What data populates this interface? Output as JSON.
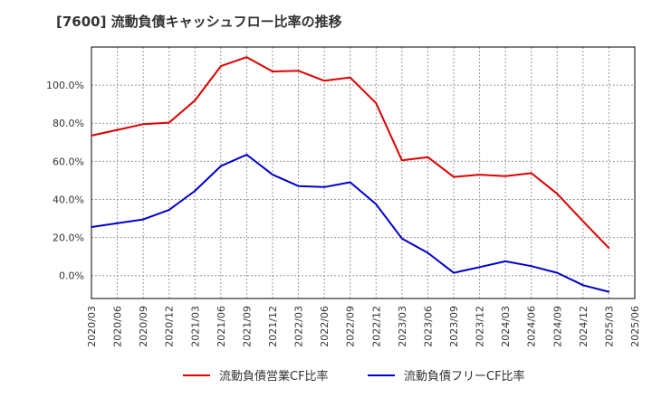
{
  "title": "[7600]  流動負債キャッシュフロー比率の推移",
  "chart_data": {
    "type": "line",
    "title": "[7600]  流動負債キャッシュフロー比率の推移",
    "xlabel": "",
    "ylabel": "",
    "categories": [
      "2020/03",
      "2020/06",
      "2020/09",
      "2020/12",
      "2021/03",
      "2021/06",
      "2021/09",
      "2021/12",
      "2022/03",
      "2022/06",
      "2022/09",
      "2022/12",
      "2023/03",
      "2023/06",
      "2023/09",
      "2023/12",
      "2024/03",
      "2024/06",
      "2024/09",
      "2024/12",
      "2025/03",
      "2025/06"
    ],
    "ylim": [
      -12,
      120
    ],
    "yticks": [
      0,
      20,
      40,
      60,
      80,
      100
    ],
    "ytick_labels": [
      "0.0%",
      "20.0%",
      "40.0%",
      "60.0%",
      "80.0%",
      "100.0%"
    ],
    "grid": true,
    "legend_position": "bottom",
    "series": [
      {
        "name": "流動負債営業CF比率",
        "color": "#dd0000",
        "points": [
          [
            "2020/03",
            73.5
          ],
          [
            "2020/06",
            76.5
          ],
          [
            "2020/09",
            79.5
          ],
          [
            "2020/12",
            80.3
          ],
          [
            "2021/03",
            92
          ],
          [
            "2021/06",
            110
          ],
          [
            "2021/09",
            114.7
          ],
          [
            "2021/12",
            107.2
          ],
          [
            "2022/03",
            107.5
          ],
          [
            "2022/06",
            102.3
          ],
          [
            "2022/09",
            104.0
          ],
          [
            "2022/12",
            90.5
          ],
          [
            "2023/03",
            60.5
          ],
          [
            "2023/06",
            62.2
          ],
          [
            "2023/09",
            51.8
          ],
          [
            "2023/12",
            53.0
          ],
          [
            "2024/03",
            52.2
          ],
          [
            "2024/06",
            53.8
          ],
          [
            "2024/09",
            43.0
          ],
          [
            "2024/12",
            28.5
          ],
          [
            "2025/03",
            14.5
          ]
        ]
      },
      {
        "name": "流動負債フリーCF比率",
        "color": "#0000cc",
        "points": [
          [
            "2020/03",
            25.5
          ],
          [
            "2020/06",
            27.5
          ],
          [
            "2020/09",
            29.5
          ],
          [
            "2020/12",
            34.5
          ],
          [
            "2021/03",
            44.5
          ],
          [
            "2021/06",
            57.5
          ],
          [
            "2021/09",
            63.5
          ],
          [
            "2021/12",
            53.0
          ],
          [
            "2022/03",
            47.0
          ],
          [
            "2022/06",
            46.5
          ],
          [
            "2022/09",
            49.0
          ],
          [
            "2022/12",
            37.5
          ],
          [
            "2023/03",
            19.5
          ],
          [
            "2023/06",
            12.0
          ],
          [
            "2023/09",
            1.5
          ],
          [
            "2023/12",
            4.5
          ],
          [
            "2024/03",
            7.5
          ],
          [
            "2024/06",
            5.0
          ],
          [
            "2024/09",
            1.5
          ],
          [
            "2024/12",
            -5.0
          ],
          [
            "2025/03",
            -8.5
          ]
        ]
      }
    ]
  },
  "legend": {
    "items": [
      {
        "label": "流動負債営業CF比率",
        "color": "#dd0000"
      },
      {
        "label": "流動負債フリーCF比率",
        "color": "#0000cc"
      }
    ]
  }
}
